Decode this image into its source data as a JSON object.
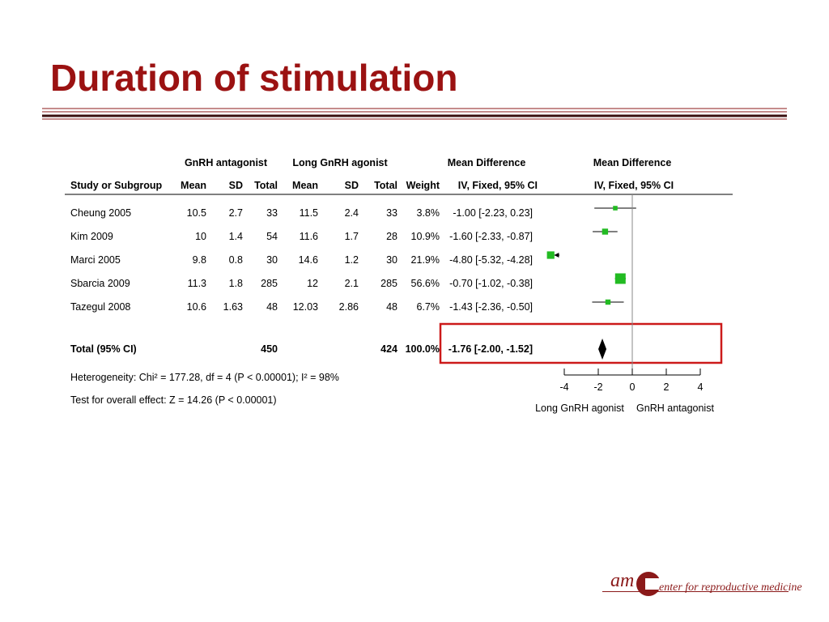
{
  "slide": {
    "title": "Duration of stimulation"
  },
  "logo": {
    "abbrev": "am",
    "text": "enter for reproductive medicine"
  },
  "chart_data": {
    "type": "forest",
    "group_headers": [
      "GnRH antagonist",
      "Long GnRH agonist",
      "Mean Difference",
      "Mean Difference"
    ],
    "column_headers": [
      "Study or Subgroup",
      "Mean",
      "SD",
      "Total",
      "Mean",
      "SD",
      "Total",
      "Weight",
      "IV, Fixed, 95% CI",
      "IV, Fixed, 95% CI"
    ],
    "studies": [
      {
        "name": "Cheung 2005",
        "exp_mean": "10.5",
        "exp_sd": "2.7",
        "exp_total": "33",
        "ctl_mean": "11.5",
        "ctl_sd": "2.4",
        "ctl_total": "33",
        "weight": "3.8%",
        "ci_text": "-1.00 [-2.23, 0.23]",
        "md": -1.0,
        "lo": -2.23,
        "hi": 0.23,
        "w": 3.8
      },
      {
        "name": "Kim 2009",
        "exp_mean": "10",
        "exp_sd": "1.4",
        "exp_total": "54",
        "ctl_mean": "11.6",
        "ctl_sd": "1.7",
        "ctl_total": "28",
        "weight": "10.9%",
        "ci_text": "-1.60 [-2.33, -0.87]",
        "md": -1.6,
        "lo": -2.33,
        "hi": -0.87,
        "w": 10.9
      },
      {
        "name": "Marci 2005",
        "exp_mean": "9.8",
        "exp_sd": "0.8",
        "exp_total": "30",
        "ctl_mean": "14.6",
        "ctl_sd": "1.2",
        "ctl_total": "30",
        "weight": "21.9%",
        "ci_text": "-4.80 [-5.32, -4.28]",
        "md": -4.8,
        "lo": -5.32,
        "hi": -4.28,
        "w": 21.9
      },
      {
        "name": "Sbarcia 2009",
        "exp_mean": "11.3",
        "exp_sd": "1.8",
        "exp_total": "285",
        "ctl_mean": "12",
        "ctl_sd": "2.1",
        "ctl_total": "285",
        "weight": "56.6%",
        "ci_text": "-0.70 [-1.02, -0.38]",
        "md": -0.7,
        "lo": -1.02,
        "hi": -0.38,
        "w": 56.6
      },
      {
        "name": "Tazegul 2008",
        "exp_mean": "10.6",
        "exp_sd": "1.63",
        "exp_total": "48",
        "ctl_mean": "12.03",
        "ctl_sd": "2.86",
        "ctl_total": "48",
        "weight": "6.7%",
        "ci_text": "-1.43 [-2.36, -0.50]",
        "md": -1.43,
        "lo": -2.36,
        "hi": -0.5,
        "w": 6.7
      }
    ],
    "total": {
      "name": "Total (95% CI)",
      "exp_total": "450",
      "ctl_total": "424",
      "weight": "100.0%",
      "ci_text": "-1.76 [-2.00, -1.52]",
      "md": -1.76,
      "lo": -2.0,
      "hi": -1.52
    },
    "heterogeneity": "Heterogeneity: Chi² = 177.28, df = 4 (P < 0.00001); I² = 98%",
    "overall_effect": "Test for overall effect: Z = 14.26 (P < 0.00001)",
    "x_ticks": [
      -4,
      -2,
      0,
      2,
      4
    ],
    "x_tick_labels": [
      "-4",
      "-2",
      "0",
      "2",
      "4"
    ],
    "xlim": [
      -4,
      4
    ],
    "favours_left": "Long GnRH agonist",
    "favours_right": "GnRH antagonist",
    "colors": {
      "marker": "#22bb22",
      "highlight": "#cc1a1a",
      "title": "#9b1212"
    }
  }
}
